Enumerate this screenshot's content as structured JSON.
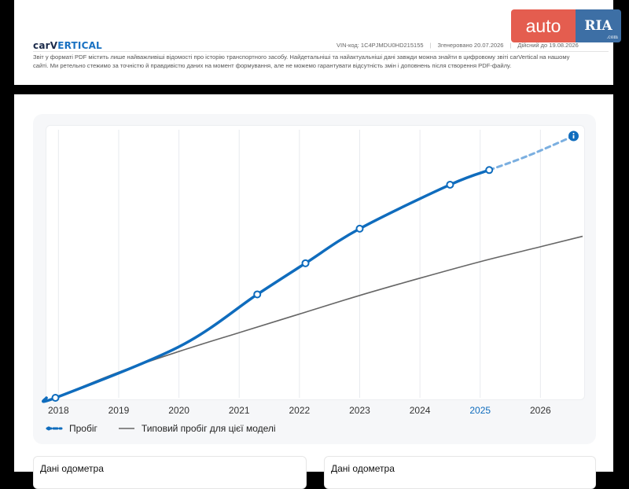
{
  "header": {
    "brand_prefix": "carV",
    "brand_suffix": "ERTICAL",
    "vin": "VIN-код: 1C4PJMDU0HD215155",
    "generated": "Згенеровано 20.07.2026",
    "valid": "Дійсний до 19.08.2026",
    "disclaimer_line1": "Звіт у форматі PDF містить лише найважливіші відомості про історію транспортного засобу. Найдетальніші та найактуальніші дані завжди можна знайти в цифровому звіті carVertical на нашому",
    "disclaimer_line2": "сайті. Ми ретельно стежимо за точністю й правдивістю даних на момент формування, але не можемо гарантувати відсутність змін і доповнень після створення PDF-файлу."
  },
  "logo": {
    "left": "auto",
    "right": "RIA",
    "small": ".com"
  },
  "chart_data": {
    "type": "line",
    "x_ticks": [
      "2018",
      "2019",
      "2020",
      "2021",
      "2022",
      "2023",
      "2024",
      "2025",
      "2026"
    ],
    "highlight_tick": "2025",
    "xlim": [
      2017.8,
      2026.7
    ],
    "ylim": [
      0,
      1
    ],
    "grid": "vertical",
    "series": [
      {
        "name": "Пробіг",
        "color": "#0f6cbd",
        "style": "solid",
        "points": [
          [
            2017.8,
            0.0
          ],
          [
            2017.95,
            0.0
          ],
          [
            2020.0,
            0.195
          ],
          [
            2021.3,
            0.395
          ],
          [
            2022.1,
            0.514
          ],
          [
            2023.0,
            0.646
          ],
          [
            2024.5,
            0.814
          ],
          [
            2025.15,
            0.87
          ]
        ],
        "markers": [
          [
            2017.95,
            0.0
          ],
          [
            2021.3,
            0.395
          ],
          [
            2022.1,
            0.514
          ],
          [
            2023.0,
            0.646
          ],
          [
            2024.5,
            0.814
          ],
          [
            2025.15,
            0.87
          ]
        ]
      },
      {
        "name": "Пробіг (прогноз)",
        "color": "#0f6cbd",
        "style": "dashed",
        "points": [
          [
            2025.15,
            0.87
          ],
          [
            2025.8,
            0.925
          ],
          [
            2026.55,
            1.0
          ]
        ],
        "markers": []
      },
      {
        "name": "Типовий пробіг для цієї моделі",
        "color": "#666666",
        "style": "solid",
        "points": [
          [
            2017.95,
            0.0
          ],
          [
            2019.0,
            0.098
          ],
          [
            2020.0,
            0.177
          ],
          [
            2021.0,
            0.249
          ],
          [
            2022.0,
            0.32
          ],
          [
            2023.0,
            0.391
          ],
          [
            2024.0,
            0.457
          ],
          [
            2025.0,
            0.52
          ],
          [
            2026.0,
            0.577
          ],
          [
            2026.7,
            0.617
          ]
        ],
        "markers": []
      }
    ],
    "info_icon": true
  },
  "legend": {
    "mileage": "Пробіг",
    "typical": "Типовий пробіг для цієї моделі"
  },
  "cards": {
    "left_title": "Дані одометра",
    "right_title": "Дані одометра"
  }
}
